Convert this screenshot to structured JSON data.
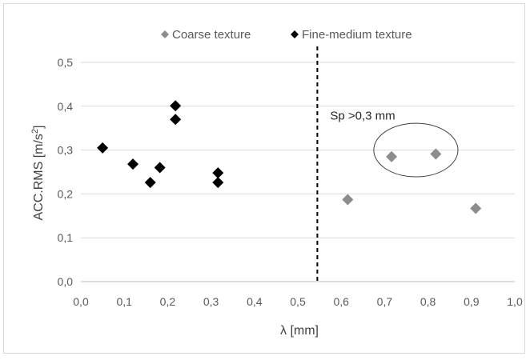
{
  "chart_data": {
    "type": "scatter",
    "xlabel": "λ [mm]",
    "ylabel_main": "ACC.RMS [m/s",
    "ylabel_sup": "2",
    "ylabel_end": "]",
    "xlim": [
      0.0,
      1.0
    ],
    "ylim": [
      0.0,
      0.5
    ],
    "x_ticks": [
      "0,0",
      "0,1",
      "0,2",
      "0,3",
      "0,4",
      "0,5",
      "0,6",
      "0,7",
      "0,8",
      "0,9",
      "1,0"
    ],
    "y_ticks": [
      "0,0",
      "0,1",
      "0,2",
      "0,3",
      "0,4",
      "0,5"
    ],
    "grid": "horizontal",
    "legend_position": "top",
    "series": [
      {
        "name": "Coarse texture",
        "color": "#8c8c8c",
        "marker": "diamond",
        "points": [
          {
            "x": 0.615,
            "y": 0.187
          },
          {
            "x": 0.716,
            "y": 0.285
          },
          {
            "x": 0.818,
            "y": 0.291
          },
          {
            "x": 0.91,
            "y": 0.167
          }
        ]
      },
      {
        "name": "Fine-medium texture",
        "color": "#000000",
        "marker": "diamond",
        "points": [
          {
            "x": 0.05,
            "y": 0.305
          },
          {
            "x": 0.12,
            "y": 0.268
          },
          {
            "x": 0.16,
            "y": 0.226
          },
          {
            "x": 0.182,
            "y": 0.26
          },
          {
            "x": 0.218,
            "y": 0.401
          },
          {
            "x": 0.218,
            "y": 0.37
          },
          {
            "x": 0.316,
            "y": 0.248
          },
          {
            "x": 0.316,
            "y": 0.226
          }
        ]
      }
    ],
    "vertical_line": {
      "x": 0.545,
      "style": "dashed"
    },
    "annotation": {
      "text": "Sp >0,3 mm",
      "ellipse_center": {
        "x": 0.772,
        "y": 0.3
      },
      "ellipse_half_width": 0.097,
      "ellipse_half_height": 0.061
    }
  }
}
